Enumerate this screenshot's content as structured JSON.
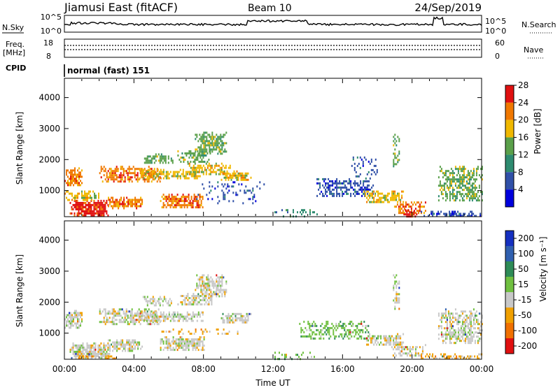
{
  "header": {
    "title": "Jiamusi East (fitACF)",
    "beam": "Beam 10",
    "date": "24/Sep/2019"
  },
  "nsky_panel": {
    "label": "N.Sky",
    "ticks_left": [
      "10^5",
      "10^0"
    ],
    "ticks_right": [
      "10^5",
      "10^0"
    ],
    "right_label": "N.Search"
  },
  "freq_panel": {
    "label_line1": "Freq.",
    "label_line2": "[MHz]",
    "ticks_left": [
      "18",
      "8"
    ],
    "right_label": "Nave",
    "ticks_right": [
      "60",
      "0"
    ]
  },
  "cpid_panel": {
    "label": "CPID",
    "mode": "normal (fast) 151"
  },
  "chart_data": [
    {
      "type": "heatmap",
      "panel": "power",
      "ylabel": "Slant Range [km]",
      "ylim": [
        180,
        4600
      ],
      "yticks": [
        "1000",
        "2000",
        "3000",
        "4000"
      ],
      "xlabel": "",
      "colorbar_label": "Power [dB]",
      "colorbar_ticks": [
        "4",
        "8",
        "12",
        "16",
        "20",
        "24",
        "28"
      ],
      "colorbar_colors": [
        "#0000dd",
        "#3050a8",
        "#2e8b70",
        "#5aa04a",
        "#f0b800",
        "#f07800",
        "#e01010"
      ],
      "blobs": [
        {
          "t0": 0.0,
          "t1": 1.0,
          "r0": 1150,
          "r1": 1750,
          "level": 5,
          "density": 0.8
        },
        {
          "t0": 0.3,
          "t1": 2.6,
          "r0": 200,
          "r1": 700,
          "level": 6,
          "density": 0.9
        },
        {
          "t0": 0.0,
          "t1": 2.0,
          "r0": 700,
          "r1": 1000,
          "level": 4,
          "density": 0.6
        },
        {
          "t0": 2.5,
          "t1": 4.5,
          "r0": 450,
          "r1": 800,
          "level": 5,
          "density": 0.8
        },
        {
          "t0": 2.0,
          "t1": 5.5,
          "r0": 1300,
          "r1": 1800,
          "level": 5,
          "density": 0.7
        },
        {
          "t0": 4.3,
          "t1": 8.0,
          "r0": 1400,
          "r1": 1700,
          "level": 4,
          "density": 0.7
        },
        {
          "t0": 4.5,
          "t1": 6.2,
          "r0": 1900,
          "r1": 2200,
          "level": 3,
          "density": 0.6
        },
        {
          "t0": 5.5,
          "t1": 8.0,
          "r0": 450,
          "r1": 900,
          "level": 5,
          "density": 0.8
        },
        {
          "t0": 6.5,
          "t1": 8.5,
          "r0": 1900,
          "r1": 2300,
          "level": 3,
          "density": 0.6
        },
        {
          "t0": 7.5,
          "t1": 9.3,
          "r0": 2200,
          "r1": 2900,
          "level": 3,
          "density": 0.7
        },
        {
          "t0": 7.0,
          "t1": 9.5,
          "r0": 1500,
          "r1": 1900,
          "level": 4,
          "density": 0.6
        },
        {
          "t0": 9.0,
          "t1": 10.7,
          "r0": 1350,
          "r1": 1650,
          "level": 4,
          "density": 0.8
        },
        {
          "t0": 7.5,
          "t1": 11.5,
          "r0": 600,
          "r1": 1300,
          "level": 1,
          "density": 0.15
        },
        {
          "t0": 14.5,
          "t1": 17.8,
          "r0": 800,
          "r1": 1400,
          "level": 1,
          "density": 0.55
        },
        {
          "t0": 16.5,
          "t1": 18.0,
          "r0": 1400,
          "r1": 2100,
          "level": 1,
          "density": 0.25
        },
        {
          "t0": 17.2,
          "t1": 19.5,
          "r0": 600,
          "r1": 1000,
          "level": 4,
          "density": 0.7
        },
        {
          "t0": 18.8,
          "t1": 20.8,
          "r0": 250,
          "r1": 650,
          "level": 5,
          "density": 0.6
        },
        {
          "t0": 19.5,
          "t1": 20.3,
          "r0": 150,
          "r1": 400,
          "level": 6,
          "density": 0.5
        },
        {
          "t0": 18.9,
          "t1": 19.3,
          "r0": 1800,
          "r1": 2900,
          "level": 3,
          "density": 0.45
        },
        {
          "t0": 21.5,
          "t1": 24.0,
          "r0": 650,
          "r1": 1800,
          "level": 3,
          "density": 0.6
        },
        {
          "t0": 20.5,
          "t1": 24.0,
          "r0": 180,
          "r1": 350,
          "level": 1,
          "density": 0.5
        },
        {
          "t0": 12.0,
          "t1": 14.5,
          "r0": 180,
          "r1": 400,
          "level": 2,
          "density": 0.25
        }
      ]
    },
    {
      "type": "heatmap",
      "panel": "velocity",
      "ylabel": "Slant Range [km]",
      "ylim": [
        180,
        4600
      ],
      "yticks": [
        "1000",
        "2000",
        "3000",
        "4000"
      ],
      "xlabel": "Time UT",
      "xticks": [
        "00:00",
        "04:00",
        "08:00",
        "12:00",
        "16:00",
        "20:00",
        "00:00"
      ],
      "colorbar_label": "Velocity [m s⁻¹]",
      "colorbar_ticks": [
        "200",
        "100",
        "50",
        "15",
        "-15",
        "-50",
        "-100",
        "-200"
      ],
      "colorbar_colors": [
        "#1530c0",
        "#3060b0",
        "#2e8b57",
        "#70c040",
        "#c8c8c8",
        "#f0a000",
        "#f07000",
        "#e01010"
      ],
      "blobs": [
        {
          "t0": 0.0,
          "t1": 1.0,
          "r0": 1150,
          "r1": 1750,
          "level": 4,
          "density": 0.7
        },
        {
          "t0": 0.3,
          "t1": 2.6,
          "r0": 200,
          "r1": 700,
          "level": 4,
          "density": 0.85
        },
        {
          "t0": 2.5,
          "t1": 4.5,
          "r0": 450,
          "r1": 800,
          "level": 4,
          "density": 0.8
        },
        {
          "t0": 2.0,
          "t1": 5.5,
          "r0": 1300,
          "r1": 1800,
          "level": 4,
          "density": 0.7
        },
        {
          "t0": 4.3,
          "t1": 8.0,
          "r0": 1400,
          "r1": 1700,
          "level": 4,
          "density": 0.7
        },
        {
          "t0": 4.5,
          "t1": 6.2,
          "r0": 1900,
          "r1": 2200,
          "level": 4,
          "density": 0.6
        },
        {
          "t0": 5.5,
          "t1": 8.0,
          "r0": 450,
          "r1": 900,
          "level": 4,
          "density": 0.8
        },
        {
          "t0": 6.5,
          "t1": 8.5,
          "r0": 1900,
          "r1": 2300,
          "level": 4,
          "density": 0.6
        },
        {
          "t0": 7.5,
          "t1": 9.3,
          "r0": 2200,
          "r1": 2900,
          "level": 4,
          "density": 0.7
        },
        {
          "t0": 9.0,
          "t1": 10.7,
          "r0": 1350,
          "r1": 1650,
          "level": 4,
          "density": 0.8
        },
        {
          "t0": 5.5,
          "t1": 10.0,
          "r0": 950,
          "r1": 1150,
          "level": 5,
          "density": 0.3
        },
        {
          "t0": 0.5,
          "t1": 3.0,
          "r0": 180,
          "r1": 350,
          "level": 5,
          "density": 0.3
        },
        {
          "t0": 13.5,
          "t1": 17.5,
          "r0": 800,
          "r1": 1400,
          "level": 3,
          "density": 0.45
        },
        {
          "t0": 17.2,
          "t1": 19.5,
          "r0": 600,
          "r1": 1000,
          "level": 4,
          "density": 0.65
        },
        {
          "t0": 18.8,
          "t1": 20.8,
          "r0": 250,
          "r1": 650,
          "level": 4,
          "density": 0.55
        },
        {
          "t0": 18.9,
          "t1": 19.3,
          "r0": 1800,
          "r1": 2900,
          "level": 4,
          "density": 0.45
        },
        {
          "t0": 21.5,
          "t1": 24.0,
          "r0": 650,
          "r1": 1800,
          "level": 4,
          "density": 0.6
        },
        {
          "t0": 20.5,
          "t1": 24.0,
          "r0": 180,
          "r1": 350,
          "level": 5,
          "density": 0.5
        },
        {
          "t0": 12.0,
          "t1": 14.5,
          "r0": 180,
          "r1": 400,
          "level": 3,
          "density": 0.25
        }
      ]
    }
  ]
}
